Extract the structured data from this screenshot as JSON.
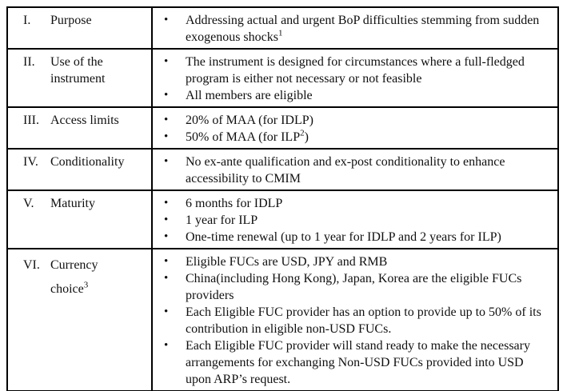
{
  "table": {
    "rows": [
      {
        "numeral": "I.",
        "label": "Purpose",
        "bullets": [
          [
            {
              "t": "Addressing actual and urgent BoP difficulties stemming from sudden exogenous shocks"
            },
            {
              "t": "1",
              "sup": true
            }
          ]
        ]
      },
      {
        "numeral": "II.",
        "label": "Use of the instrument",
        "bullets": [
          [
            {
              "t": "The instrument is designed for circumstances where a full-fledged program is either not necessary or not feasible"
            }
          ],
          [
            {
              "t": "All members are eligible"
            }
          ]
        ]
      },
      {
        "numeral": "III.",
        "label": "Access limits",
        "bullets": [
          [
            {
              "t": "20% of MAA (for IDLP)"
            }
          ],
          [
            {
              "t": "50% of MAA (for ILP"
            },
            {
              "t": "2",
              "sup": true
            },
            {
              "t": ")"
            }
          ]
        ]
      },
      {
        "numeral": "IV.",
        "label": "Conditionality",
        "bullets": [
          [
            {
              "t": "No ex-ante qualification and ex-post conditionality to enhance accessibility to CMIM"
            }
          ]
        ]
      },
      {
        "numeral": "V.",
        "label": "Maturity",
        "bullets": [
          [
            {
              "t": "6 months for IDLP"
            }
          ],
          [
            {
              "t": "1 year for ILP"
            }
          ],
          [
            {
              "t": "One-time renewal (up to 1 year for IDLP and 2 years for ILP)"
            }
          ]
        ]
      },
      {
        "numeral": "VI.",
        "label": "Currency choice",
        "label_sup": "3",
        "bullets": [
          [
            {
              "t": "Eligible FUCs are USD, JPY and RMB"
            }
          ],
          [
            {
              "t": "China(including Hong Kong), Japan, Korea are the eligible FUCs providers"
            }
          ],
          [
            {
              "t": "Each Eligible FUC provider has an option to provide up to 50% of its contribution in eligible non-USD FUCs."
            }
          ],
          [
            {
              "t": "Each Eligible FUC provider will stand ready to make the necessary arrangements for exchanging Non-USD FUCs provided into USD upon ARP’s request."
            }
          ]
        ]
      }
    ],
    "bullet_glyph": "•",
    "border_color": "#000000",
    "text_color": "#101010"
  }
}
